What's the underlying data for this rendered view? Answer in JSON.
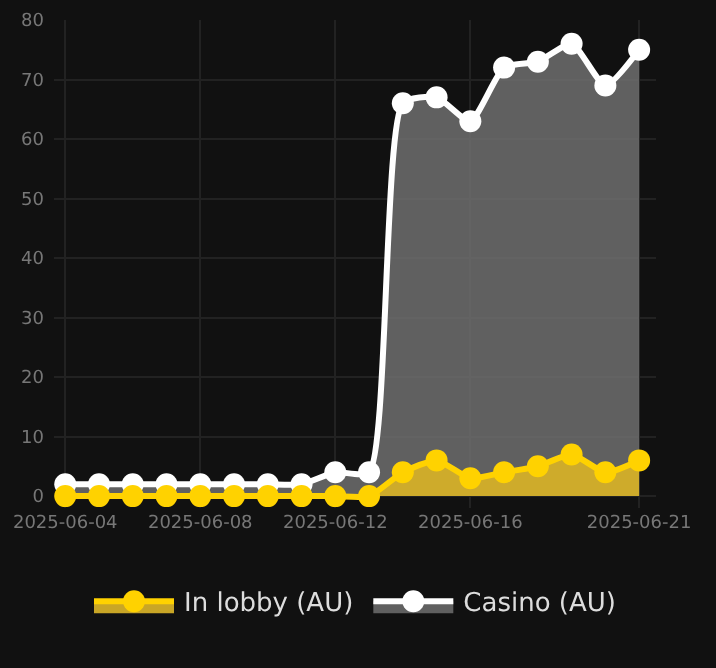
{
  "chart_data": {
    "type": "area",
    "x": [
      "2025-06-04",
      "2025-06-05",
      "2025-06-06",
      "2025-06-07",
      "2025-06-08",
      "2025-06-09",
      "2025-06-10",
      "2025-06-11",
      "2025-06-12",
      "2025-06-13",
      "2025-06-14",
      "2025-06-15",
      "2025-06-16",
      "2025-06-17",
      "2025-06-18",
      "2025-06-19",
      "2025-06-20",
      "2025-06-21"
    ],
    "series": [
      {
        "name": "In lobby (AU)",
        "color": "#ffd200",
        "values": [
          0,
          0,
          0,
          0,
          0,
          0,
          0,
          0,
          0,
          0,
          4,
          6,
          3,
          4,
          5,
          7,
          4,
          6
        ]
      },
      {
        "name": "Casino (AU)",
        "color": "#ffffff",
        "values": [
          2,
          2,
          2,
          2,
          2,
          2,
          2,
          2,
          4,
          4,
          66,
          67,
          63,
          72,
          73,
          76,
          69,
          75
        ]
      }
    ],
    "xlim": [
      "2025-06-03T16:00",
      "2025-06-21T12:00"
    ],
    "xticks": [
      {
        "value": "2025-06-04",
        "label": "2025-06-04"
      },
      {
        "value": "2025-06-08",
        "label": "2025-06-08"
      },
      {
        "value": "2025-06-12",
        "label": "2025-06-12"
      },
      {
        "value": "2025-06-16",
        "label": "2025-06-16"
      },
      {
        "value": "2025-06-21",
        "label": "2025-06-21"
      }
    ],
    "ylim": [
      -2,
      80
    ],
    "yticks": [
      0,
      10,
      20,
      30,
      40,
      50,
      60,
      70,
      80
    ],
    "grid": true,
    "legend": "bottom",
    "marker": "circle",
    "line_style": "solid"
  }
}
